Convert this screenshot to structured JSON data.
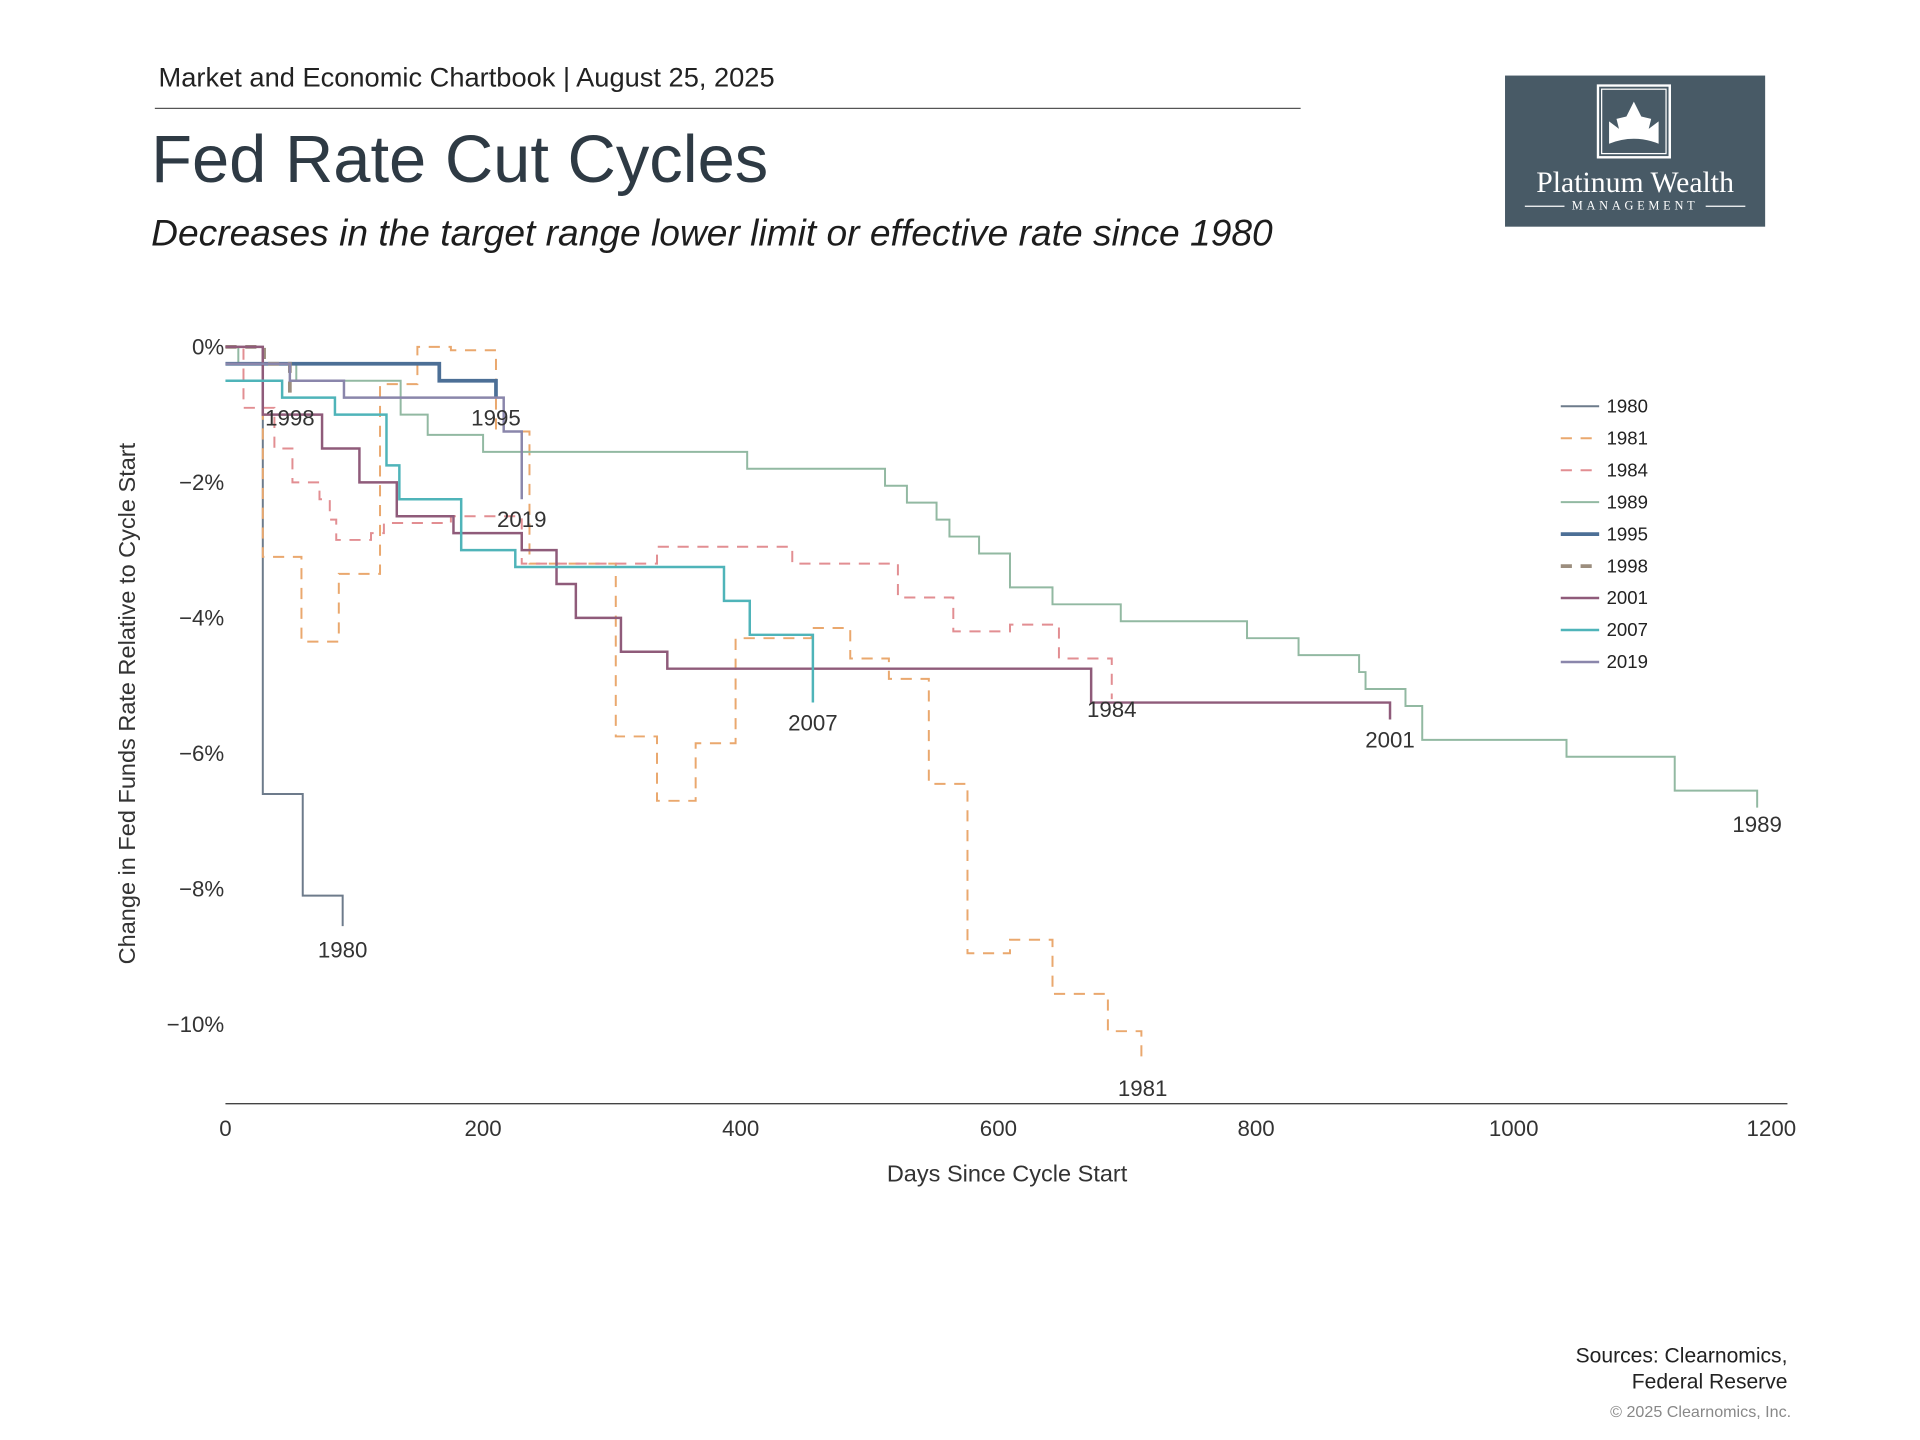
{
  "header": {
    "chartbook": "Market and Economic Chartbook | August 25, 2025",
    "title": "Fed Rate Cut Cycles",
    "subtitle": "Decreases in the target range lower limit or effective rate since 1980"
  },
  "logo": {
    "name": "Platinum Wealth",
    "sub": "MANAGEMENT"
  },
  "footer": {
    "sources_line1": "Sources: Clearnomics,",
    "sources_line2": "Federal Reserve",
    "copyright": "© 2025 Clearnomics, Inc."
  },
  "chart_data": {
    "type": "line",
    "title": "Fed Rate Cut Cycles",
    "xlabel": "Days Since Cycle Start",
    "ylabel": "Change in Fed Funds Rate Relative to Cycle Start",
    "xlim": [
      0,
      1200
    ],
    "ylim": [
      -11,
      0
    ],
    "xticks": [
      0,
      200,
      400,
      600,
      800,
      1000,
      1200
    ],
    "xtick_labels": [
      "0",
      "200",
      "400",
      "600",
      "800",
      "1000",
      "1200"
    ],
    "yticks": [
      0,
      -2,
      -4,
      -6,
      -8,
      -10
    ],
    "ytick_labels": [
      "0%",
      "−2%",
      "−4%",
      "−6%",
      "−8%",
      "−10%"
    ],
    "legend_position": "right",
    "grid": false,
    "step": true,
    "series": [
      {
        "name": "1980",
        "color": "#6d7b8b",
        "dash": false,
        "width": 1.6,
        "label_pos": [
          91,
          -8.9
        ],
        "points": [
          [
            0,
            0
          ],
          [
            29,
            -6.6
          ],
          [
            60,
            -8.1
          ],
          [
            91,
            -8.55
          ]
        ]
      },
      {
        "name": "1981",
        "color": "#eaa86e",
        "dash": true,
        "width": 1.6,
        "label_pos": [
          712,
          -10.95
        ],
        "points": [
          [
            0,
            0
          ],
          [
            29,
            -3.1
          ],
          [
            59,
            -4.35
          ],
          [
            88,
            -3.35
          ],
          [
            120,
            -0.55
          ],
          [
            149,
            0
          ],
          [
            175,
            -0.05
          ],
          [
            210,
            -1.25
          ],
          [
            236,
            -3.2
          ],
          [
            303,
            -5.75
          ],
          [
            335,
            -6.7
          ],
          [
            365,
            -5.85
          ],
          [
            396,
            -4.3
          ],
          [
            455,
            -4.15
          ],
          [
            485,
            -4.6
          ],
          [
            515,
            -4.9
          ],
          [
            546,
            -6.45
          ],
          [
            576,
            -8.95
          ],
          [
            609,
            -8.75
          ],
          [
            642,
            -9.55
          ],
          [
            685,
            -10.1
          ],
          [
            711,
            -10.55
          ]
        ]
      },
      {
        "name": "1984",
        "color": "#e28e92",
        "dash": true,
        "width": 1.6,
        "label_pos": [
          688,
          -5.35
        ],
        "points": [
          [
            0,
            0
          ],
          [
            14,
            -0.9
          ],
          [
            38,
            -1.5
          ],
          [
            52,
            -2.0
          ],
          [
            73,
            -2.25
          ],
          [
            81,
            -2.55
          ],
          [
            86,
            -2.85
          ],
          [
            113,
            -2.75
          ],
          [
            123,
            -2.6
          ],
          [
            175,
            -2.5
          ],
          [
            230,
            -3.2
          ],
          [
            335,
            -2.95
          ],
          [
            440,
            -3.2
          ],
          [
            522,
            -3.7
          ],
          [
            565,
            -4.2
          ],
          [
            609,
            -4.1
          ],
          [
            647,
            -4.6
          ],
          [
            688,
            -5.2
          ]
        ]
      },
      {
        "name": "1989",
        "color": "#92b9a2",
        "dash": false,
        "width": 1.6,
        "label_pos": [
          1189,
          -7.05
        ],
        "points": [
          [
            0,
            0
          ],
          [
            10,
            -0.25
          ],
          [
            55,
            -0.5
          ],
          [
            136,
            -1.0
          ],
          [
            157,
            -1.3
          ],
          [
            200,
            -1.55
          ],
          [
            405,
            -1.8
          ],
          [
            512,
            -2.05
          ],
          [
            529,
            -2.3
          ],
          [
            552,
            -2.55
          ],
          [
            562,
            -2.8
          ],
          [
            585,
            -3.05
          ],
          [
            609,
            -3.55
          ],
          [
            642,
            -3.8
          ],
          [
            695,
            -4.05
          ],
          [
            793,
            -4.3
          ],
          [
            833,
            -4.55
          ],
          [
            880,
            -4.8
          ],
          [
            885,
            -5.05
          ],
          [
            916,
            -5.3
          ],
          [
            929,
            -5.8
          ],
          [
            1041,
            -6.05
          ],
          [
            1125,
            -6.55
          ],
          [
            1189,
            -6.8
          ]
        ]
      },
      {
        "name": "1995",
        "color": "#4c6f96",
        "dash": false,
        "width": 3,
        "label_pos": [
          210,
          -1.05
        ],
        "points": [
          [
            0,
            -0.25
          ],
          [
            166,
            -0.5
          ],
          [
            210,
            -0.75
          ]
        ]
      },
      {
        "name": "1998",
        "color": "#9c8e7e",
        "dash": true,
        "width": 3,
        "label_pos": [
          50,
          -1.05
        ],
        "points": [
          [
            0,
            0
          ],
          [
            30,
            -0.25
          ],
          [
            50,
            -0.5
          ],
          [
            50,
            -0.75
          ]
        ]
      },
      {
        "name": "2001",
        "color": "#8f5b7a",
        "dash": false,
        "width": 2,
        "label_pos": [
          904,
          -5.8
        ],
        "points": [
          [
            0,
            0
          ],
          [
            29,
            -1.0
          ],
          [
            75,
            -1.5
          ],
          [
            104,
            -2.0
          ],
          [
            133,
            -2.5
          ],
          [
            177,
            -2.75
          ],
          [
            230,
            -3.0
          ],
          [
            257,
            -3.5
          ],
          [
            272,
            -4.0
          ],
          [
            307,
            -4.5
          ],
          [
            343,
            -4.75
          ],
          [
            672,
            -5.25
          ],
          [
            904,
            -5.5
          ]
        ]
      },
      {
        "name": "2007",
        "color": "#4fb4b9",
        "dash": false,
        "width": 2,
        "label_pos": [
          456,
          -5.55
        ],
        "points": [
          [
            0,
            -0.5
          ],
          [
            44,
            -0.75
          ],
          [
            85,
            -1.0
          ],
          [
            125,
            -1.75
          ],
          [
            135,
            -2.25
          ],
          [
            183,
            -3.0
          ],
          [
            225,
            -3.25
          ],
          [
            387,
            -3.75
          ],
          [
            407,
            -4.25
          ],
          [
            456,
            -5.25
          ]
        ]
      },
      {
        "name": "2019",
        "color": "#8a86ab",
        "dash": false,
        "width": 2,
        "label_pos": [
          230,
          -2.55
        ],
        "points": [
          [
            0,
            -0.25
          ],
          [
            50,
            -0.5
          ],
          [
            92,
            -0.75
          ],
          [
            216,
            -1.25
          ],
          [
            230,
            -2.25
          ]
        ]
      }
    ]
  }
}
